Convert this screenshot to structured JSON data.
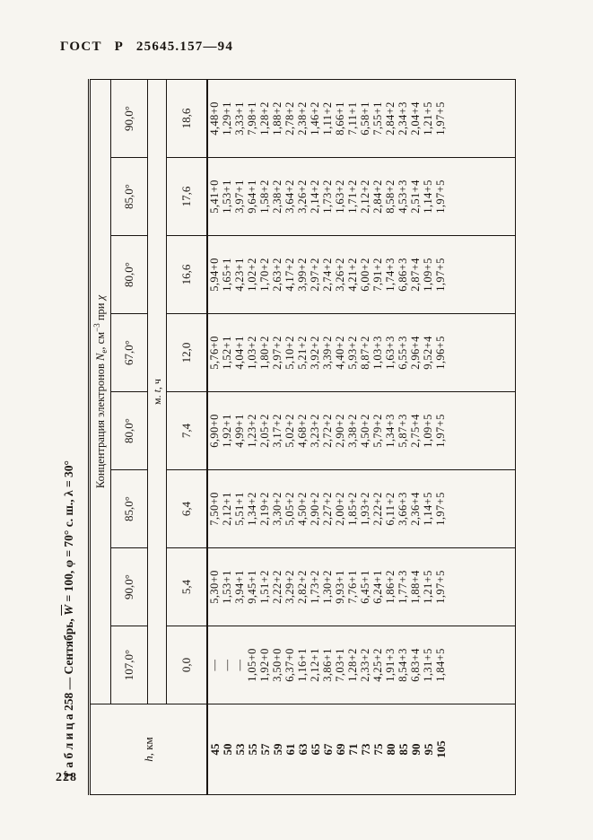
{
  "page": {
    "header": "ГОСТ Р 25645.157—94",
    "page_number": "228"
  },
  "table": {
    "title": {
      "prefix": "Т а б л и ц а  258 — Сентябрь, ",
      "w": "W",
      "suffix": " = 100, φ = 70° с. ш., λ = 30°"
    },
    "header": {
      "h_col": {
        "italic": "h",
        "rest": ", км"
      },
      "ne_title": {
        "p1": "Концентрация электронов ",
        "n": "N",
        "sub": "e",
        "p2": ", см",
        "sup": "−3",
        "p3": " при ",
        "chi": "χ"
      },
      "time_label": {
        "p1": "м. ",
        "t": "t",
        "p2": ", ч"
      },
      "chi_values": [
        "107,0°",
        "90,0°",
        "85,0°",
        "80,0°",
        "67,0°",
        "80,0°",
        "85,0°",
        "90,0°"
      ],
      "t_values": [
        "0,0",
        "5,4",
        "6,4",
        "7,4",
        "12,0",
        "16,6",
        "17,6",
        "18,6"
      ]
    },
    "rows": [
      {
        "h": "45",
        "values": [
          "—",
          "5,30+0",
          "7,50+0",
          "6,90+0",
          "5,76+0",
          "5,94+0",
          "5,41+0",
          "4,48+0"
        ]
      },
      {
        "h": "50",
        "values": [
          "—",
          "1,53+1",
          "2,12+1",
          "1,92+1",
          "1,52+1",
          "1,65+1",
          "1,53+1",
          "1,29+1"
        ]
      },
      {
        "h": "53",
        "values": [
          "—",
          "3,94+1",
          "5,51+1",
          "4,99+1",
          "4,04+1",
          "4,23+1",
          "3,97+1",
          "3,33+1"
        ]
      },
      {
        "h": "55",
        "values": [
          "1,05+0",
          "9,45+1",
          "1,34+2",
          "1,23+2",
          "1,03+2",
          "1,02+2",
          "9,64+1",
          "7,98+1"
        ]
      },
      {
        "h": "57",
        "values": [
          "1,92+0",
          "1,51+2",
          "2,19+2",
          "2,05+2",
          "1,80+2",
          "1,70+2",
          "1,58+2",
          "1,28+2"
        ]
      },
      {
        "h": "59",
        "values": [
          "3,50+0",
          "2,22+2",
          "3,30+2",
          "3,17+2",
          "2,97+2",
          "2,63+2",
          "2,38+2",
          "1,88+2"
        ]
      },
      {
        "h": "61",
        "values": [
          "6,37+0",
          "3,29+2",
          "5,05+2",
          "5,02+2",
          "5,10+2",
          "4,17+2",
          "3,64+2",
          "2,78+2"
        ]
      },
      {
        "h": "63",
        "values": [
          "1,16+1",
          "2,82+2",
          "4,50+2",
          "4,68+2",
          "5,21+2",
          "3,99+2",
          "3,26+2",
          "2,38+2"
        ]
      },
      {
        "h": "65",
        "values": [
          "2,12+1",
          "1,73+2",
          "2,90+2",
          "3,23+2",
          "3,92+2",
          "2,97+2",
          "2,14+2",
          "1,46+2"
        ]
      },
      {
        "h": "67",
        "values": [
          "3,86+1",
          "1,30+2",
          "2,27+2",
          "2,72+2",
          "3,39+2",
          "2,74+2",
          "1,73+2",
          "1,11+2"
        ]
      },
      {
        "h": "69",
        "values": [
          "7,03+1",
          "9,93+1",
          "2,00+2",
          "2,90+2",
          "4,40+2",
          "3,26+2",
          "1,63+2",
          "8,66+1"
        ]
      },
      {
        "h": "71",
        "values": [
          "1,28+2",
          "7,76+1",
          "1,85+2",
          "3,38+2",
          "5,93+2",
          "4,21+2",
          "1,71+2",
          "7,11+1"
        ]
      },
      {
        "h": "73",
        "values": [
          "2,33+2",
          "6,45+1",
          "1,93+2",
          "4,50+2",
          "8,87+2",
          "6,00+2",
          "2,12+2",
          "6,58+1"
        ]
      },
      {
        "h": "75",
        "values": [
          "4,25+2",
          "6,24+1",
          "2,22+2",
          "5,79+2",
          "1,03+3",
          "7,91+2",
          "2,84+2",
          "7,55+1"
        ]
      },
      {
        "h": "80",
        "values": [
          "1,91+3",
          "1,86+2",
          "6,11+2",
          "1,34+3",
          "1,63+3",
          "1,74+3",
          "8,58+2",
          "2,84+2"
        ]
      },
      {
        "h": "85",
        "values": [
          "8,54+3",
          "1,77+3",
          "3,66+3",
          "5,87+3",
          "6,55+3",
          "6,86+3",
          "4,53+3",
          "2,34+3"
        ]
      },
      {
        "h": "90",
        "values": [
          "6,83+4",
          "1,88+4",
          "2,36+4",
          "2,75+4",
          "2,96+4",
          "2,87+4",
          "2,51+4",
          "2,04+4"
        ]
      },
      {
        "h": "95",
        "values": [
          "1,31+5",
          "1,21+5",
          "1,14+5",
          "1,09+5",
          "9,52+4",
          "1,09+5",
          "1,14+5",
          "1,21+5"
        ]
      },
      {
        "h": "105",
        "values": [
          "1,84+5",
          "1,97+5",
          "1,97+5",
          "1,97+5",
          "1,96+5",
          "1,97+5",
          "1,97+5",
          "1,97+5"
        ]
      }
    ]
  }
}
